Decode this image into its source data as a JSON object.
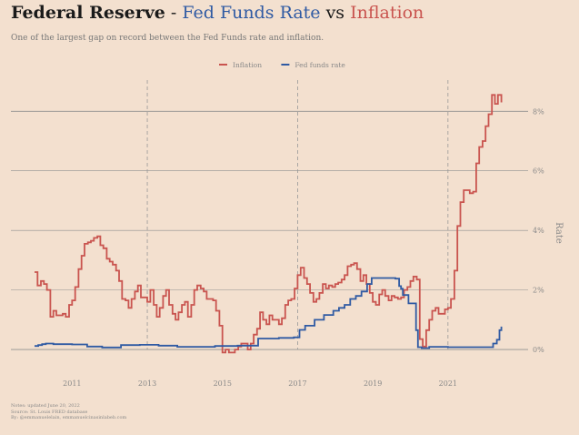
{
  "title": {
    "part1": "Federal Reserve",
    "sep1": " - ",
    "part2": "Fed Funds Rate",
    "sep2": " vs ",
    "part3": "Inflation"
  },
  "subtitle": "One of the largest gap on record between the Fed Funds rate and inflation.",
  "footnote": [
    "Notes: updated June 20, 2022",
    "Source: St. Louis FRED database",
    "By: @emmanuelelain, emmanuelcinasinlabeb.com"
  ],
  "colors": {
    "background": "#f3e0cf",
    "inflation": "#c9544f",
    "fed_funds": "#2f5aa3",
    "gridline": "#8f8f8f",
    "vline": "#999999",
    "text": "#888888"
  },
  "chart_data": {
    "type": "line",
    "title": "",
    "xlabel": "",
    "ylabel": "Rate",
    "xlim": [
      2010.0,
      2022.6
    ],
    "ylim": [
      -0.7,
      9.2
    ],
    "x_ticks": [
      2011,
      2013,
      2015,
      2017,
      2019,
      2021
    ],
    "x_tick_labels": [
      "2011",
      "2013",
      "2015",
      "2017",
      "2019",
      "2021"
    ],
    "y_ticks": [
      0,
      2,
      4,
      6,
      8
    ],
    "y_tick_labels": [
      "0%",
      "2%",
      "4%",
      "6%",
      "8%"
    ],
    "y_axis_position": "right",
    "grid": "horizontal gridlines, dashed vertical lines at even years",
    "legend_position": "top-center",
    "series": [
      {
        "name": "Inflation",
        "color": "#c9544f",
        "step": true,
        "x": [
          2010.0,
          2010.08,
          2010.17,
          2010.25,
          2010.33,
          2010.42,
          2010.5,
          2010.58,
          2010.67,
          2010.75,
          2010.83,
          2010.92,
          2011.0,
          2011.08,
          2011.17,
          2011.25,
          2011.33,
          2011.42,
          2011.5,
          2011.58,
          2011.67,
          2011.75,
          2011.83,
          2011.92,
          2012.0,
          2012.08,
          2012.17,
          2012.25,
          2012.33,
          2012.42,
          2012.5,
          2012.58,
          2012.67,
          2012.75,
          2012.83,
          2012.92,
          2013.0,
          2013.08,
          2013.17,
          2013.25,
          2013.33,
          2013.42,
          2013.5,
          2013.58,
          2013.67,
          2013.75,
          2013.83,
          2013.92,
          2014.0,
          2014.08,
          2014.17,
          2014.25,
          2014.33,
          2014.42,
          2014.5,
          2014.58,
          2014.67,
          2014.75,
          2014.83,
          2014.92,
          2015.0,
          2015.08,
          2015.17,
          2015.25,
          2015.33,
          2015.42,
          2015.5,
          2015.58,
          2015.67,
          2015.75,
          2015.83,
          2015.92,
          2016.0,
          2016.08,
          2016.17,
          2016.25,
          2016.33,
          2016.42,
          2016.5,
          2016.58,
          2016.67,
          2016.75,
          2016.83,
          2016.92,
          2017.0,
          2017.08,
          2017.17,
          2017.25,
          2017.33,
          2017.42,
          2017.5,
          2017.58,
          2017.67,
          2017.75,
          2017.83,
          2017.92,
          2018.0,
          2018.08,
          2018.17,
          2018.25,
          2018.33,
          2018.42,
          2018.5,
          2018.58,
          2018.67,
          2018.75,
          2018.83,
          2018.92,
          2019.0,
          2019.08,
          2019.17,
          2019.25,
          2019.33,
          2019.42,
          2019.5,
          2019.58,
          2019.67,
          2019.75,
          2019.83,
          2019.92,
          2020.0,
          2020.08,
          2020.17,
          2020.25,
          2020.33,
          2020.42,
          2020.5,
          2020.58,
          2020.67,
          2020.75,
          2020.83,
          2020.92,
          2021.0,
          2021.08,
          2021.17,
          2021.25,
          2021.33,
          2021.42,
          2021.5,
          2021.58,
          2021.67,
          2021.75,
          2021.83,
          2021.92,
          2022.0,
          2022.08,
          2022.17,
          2022.25,
          2022.33,
          2022.42
        ],
        "values": [
          2.6,
          2.15,
          2.3,
          2.2,
          2.0,
          1.1,
          1.3,
          1.15,
          1.15,
          1.2,
          1.1,
          1.5,
          1.65,
          2.1,
          2.7,
          3.15,
          3.55,
          3.6,
          3.65,
          3.75,
          3.8,
          3.5,
          3.4,
          3.05,
          2.95,
          2.85,
          2.65,
          2.3,
          1.7,
          1.65,
          1.4,
          1.7,
          1.95,
          2.15,
          1.75,
          1.75,
          1.6,
          2.0,
          1.5,
          1.1,
          1.4,
          1.8,
          2.0,
          1.5,
          1.2,
          1.0,
          1.25,
          1.5,
          1.6,
          1.1,
          1.5,
          2.0,
          2.15,
          2.05,
          1.95,
          1.7,
          1.7,
          1.65,
          1.3,
          0.8,
          -0.1,
          0.0,
          -0.1,
          -0.1,
          0.0,
          0.1,
          0.2,
          0.2,
          0.0,
          0.2,
          0.5,
          0.7,
          1.25,
          1.0,
          0.85,
          1.15,
          1.0,
          1.0,
          0.85,
          1.05,
          1.5,
          1.65,
          1.7,
          2.05,
          2.5,
          2.75,
          2.4,
          2.2,
          1.9,
          1.6,
          1.7,
          1.9,
          2.2,
          2.05,
          2.15,
          2.1,
          2.2,
          2.25,
          2.35,
          2.5,
          2.8,
          2.85,
          2.9,
          2.7,
          2.3,
          2.5,
          2.2,
          1.9,
          1.6,
          1.5,
          1.85,
          2.0,
          1.8,
          1.65,
          1.8,
          1.75,
          1.7,
          1.75,
          2.0,
          2.1,
          2.3,
          2.45,
          2.35,
          0.35,
          0.1,
          0.65,
          1.0,
          1.3,
          1.4,
          1.2,
          1.2,
          1.35,
          1.4,
          1.7,
          2.65,
          4.15,
          4.95,
          5.35,
          5.35,
          5.25,
          5.3,
          6.25,
          6.8,
          7.0,
          7.5,
          7.9,
          8.55,
          8.25,
          8.55,
          8.3
        ]
      },
      {
        "name": "Fed funds rate",
        "color": "#2f5aa3",
        "step": true,
        "x": [
          2010.0,
          2010.1,
          2010.2,
          2010.3,
          2010.5,
          2011.0,
          2011.4,
          2011.8,
          2012.3,
          2012.8,
          2013.3,
          2013.8,
          2014.3,
          2014.8,
          2015.0,
          2015.4,
          2015.95,
          2016.3,
          2016.5,
          2016.9,
          2017.05,
          2017.2,
          2017.45,
          2017.7,
          2017.95,
          2018.1,
          2018.25,
          2018.4,
          2018.55,
          2018.7,
          2018.85,
          2018.97,
          2019.55,
          2019.6,
          2019.7,
          2019.75,
          2019.8,
          2019.95,
          2020.1,
          2020.15,
          2020.2,
          2020.3,
          2020.5,
          2021.0,
          2021.5,
          2022.0,
          2022.2,
          2022.3,
          2022.37,
          2022.42
        ],
        "values": [
          0.12,
          0.15,
          0.18,
          0.2,
          0.18,
          0.17,
          0.1,
          0.07,
          0.15,
          0.16,
          0.13,
          0.09,
          0.09,
          0.12,
          0.12,
          0.13,
          0.37,
          0.37,
          0.39,
          0.41,
          0.66,
          0.8,
          1.0,
          1.16,
          1.3,
          1.4,
          1.5,
          1.7,
          1.8,
          1.95,
          2.2,
          2.4,
          2.4,
          2.38,
          2.13,
          2.04,
          1.83,
          1.55,
          1.55,
          0.65,
          0.08,
          0.05,
          0.09,
          0.08,
          0.08,
          0.08,
          0.2,
          0.33,
          0.65,
          0.77
        ]
      }
    ]
  }
}
